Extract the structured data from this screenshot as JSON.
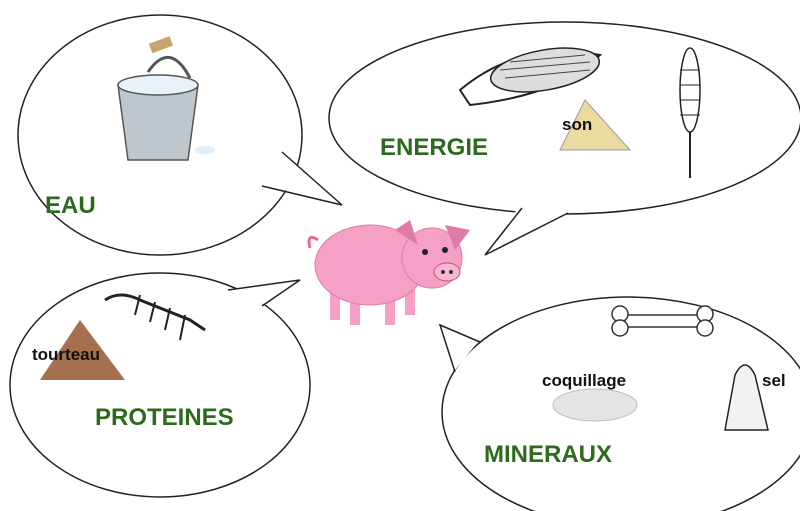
{
  "bubbles": [
    {
      "title": "EAU"
    },
    {
      "title": "ENERGIE",
      "items": [
        "son"
      ]
    },
    {
      "title": "PROTEINES",
      "items": [
        "tourteau"
      ]
    },
    {
      "title": "MINERAUX",
      "items": [
        "coquillage",
        "sel"
      ]
    }
  ]
}
